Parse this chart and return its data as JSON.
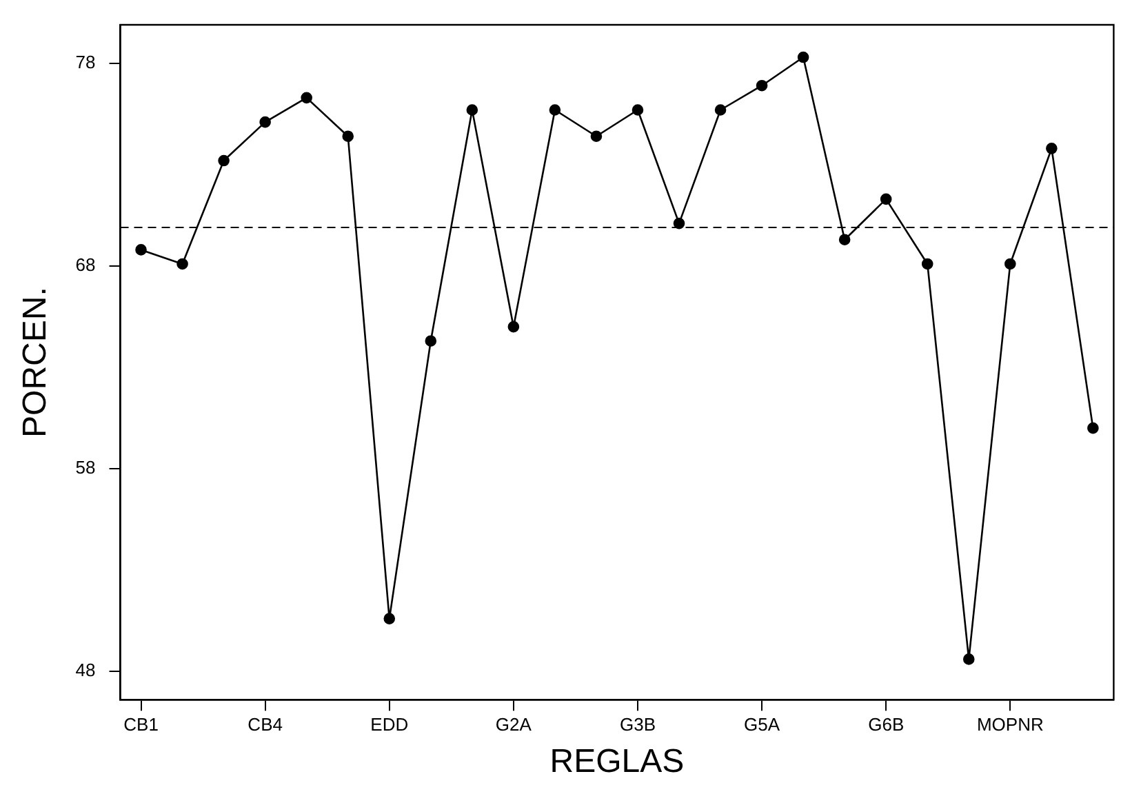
{
  "chart_data": {
    "type": "line",
    "xlabel": "REGLAS",
    "ylabel": "PORCEN.",
    "categories": [
      "CB1",
      null,
      null,
      "CB4",
      null,
      null,
      "EDD",
      null,
      null,
      "G2A",
      null,
      null,
      "G3B",
      null,
      null,
      "G5A",
      null,
      null,
      "G6B",
      null,
      null,
      "MOPNR",
      null,
      null
    ],
    "series": [
      {
        "color": "#000000",
        "values": [
          68.8,
          68.1,
          73.2,
          75.1,
          76.3,
          74.4,
          50.6,
          64.3,
          75.7,
          65.0,
          75.7,
          74.4,
          75.7,
          70.1,
          75.7,
          76.9,
          78.3,
          69.3,
          71.3,
          68.1,
          48.6,
          68.1,
          73.8,
          60.0
        ]
      }
    ],
    "ylim": [
      46.6,
      79.9
    ],
    "yticks": [
      48,
      58,
      68,
      78
    ],
    "ref_lines": [
      {
        "axis": "y",
        "value": 69.9,
        "color": "#000000",
        "line_style": "dashed"
      }
    ],
    "marker": "circle",
    "line_style": "solid",
    "grid": false,
    "legend": false
  }
}
